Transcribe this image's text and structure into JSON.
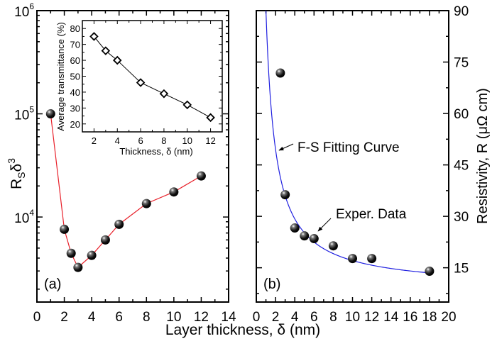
{
  "chart_data": [
    {
      "type": "scatter",
      "panel_label": "(a)",
      "xlabel": "Layer thickness, δ (nm)",
      "ylabel_main": "R",
      "ylabel_sub": "S",
      "ylabel_delta": "δ",
      "ylabel_sup": "3",
      "xlim": [
        0,
        14
      ],
      "ylim": [
        1500,
        1000000
      ],
      "yscale": "log",
      "xticks": [
        "0",
        "2",
        "4",
        "6",
        "8",
        "10",
        "12",
        "14"
      ],
      "yticks": [
        {
          "base": "10",
          "exp": "4"
        },
        {
          "base": "10",
          "exp": "5"
        },
        {
          "base": "10",
          "exp": "6"
        }
      ],
      "series": [
        {
          "x": [
            1,
            2,
            2.5,
            3,
            4,
            5,
            6,
            8,
            10,
            12
          ],
          "y": [
            100000,
            7600,
            4450,
            3250,
            4250,
            6000,
            8500,
            13500,
            17500,
            25000
          ],
          "line_color": "#e8202a",
          "marker": "black sphere"
        }
      ],
      "inset": {
        "type": "line",
        "xlabel": "Thickness, δ (nm)",
        "ylabel": "Average transmittance (%)",
        "xlim": [
          1,
          13
        ],
        "ylim": [
          15,
          85
        ],
        "xticks": [
          "2",
          "4",
          "6",
          "8",
          "10",
          "12"
        ],
        "yticks": [
          "20",
          "30",
          "40",
          "50",
          "60",
          "70",
          "80"
        ],
        "series": [
          {
            "x": [
              2,
              3,
              4,
              6,
              8,
              10,
              12
            ],
            "y": [
              75,
              66,
              60,
              46,
              39,
              32,
              24
            ],
            "marker": "open diamond",
            "line_color": "#000000"
          }
        ]
      }
    },
    {
      "type": "scatter",
      "panel_label": "(b)",
      "ylabel": "Resistivity, R (μΩ cm)",
      "xlim": [
        0,
        20
      ],
      "ylim": [
        5,
        90
      ],
      "xticks": [
        "0",
        "2",
        "4",
        "6",
        "8",
        "10",
        "12",
        "14",
        "16",
        "18",
        "20"
      ],
      "yticks": [
        "15",
        "30",
        "45",
        "60",
        "75",
        "90"
      ],
      "series": [
        {
          "name": "Exper. Data",
          "x": [
            2.5,
            3,
            4,
            5,
            6,
            8,
            10,
            12,
            18
          ],
          "y": [
            71.8,
            36.3,
            26.6,
            24.3,
            23.5,
            21.4,
            17.7,
            17.7,
            14.0
          ],
          "marker": "black sphere"
        },
        {
          "name": "F-S Fitting Curve",
          "x": [
            1,
            1.5,
            2,
            2.5,
            3,
            4,
            5,
            6,
            8,
            10,
            12,
            14,
            16,
            18
          ],
          "y": [
            90,
            63,
            49.5,
            41.4,
            36,
            29.25,
            25.2,
            22.5,
            19.1,
            17.1,
            15.75,
            14.8,
            14.1,
            13.5
          ],
          "line_color": "#2020e0"
        }
      ],
      "annotations": [
        "F-S Fitting Curve",
        "Exper. Data"
      ]
    }
  ]
}
